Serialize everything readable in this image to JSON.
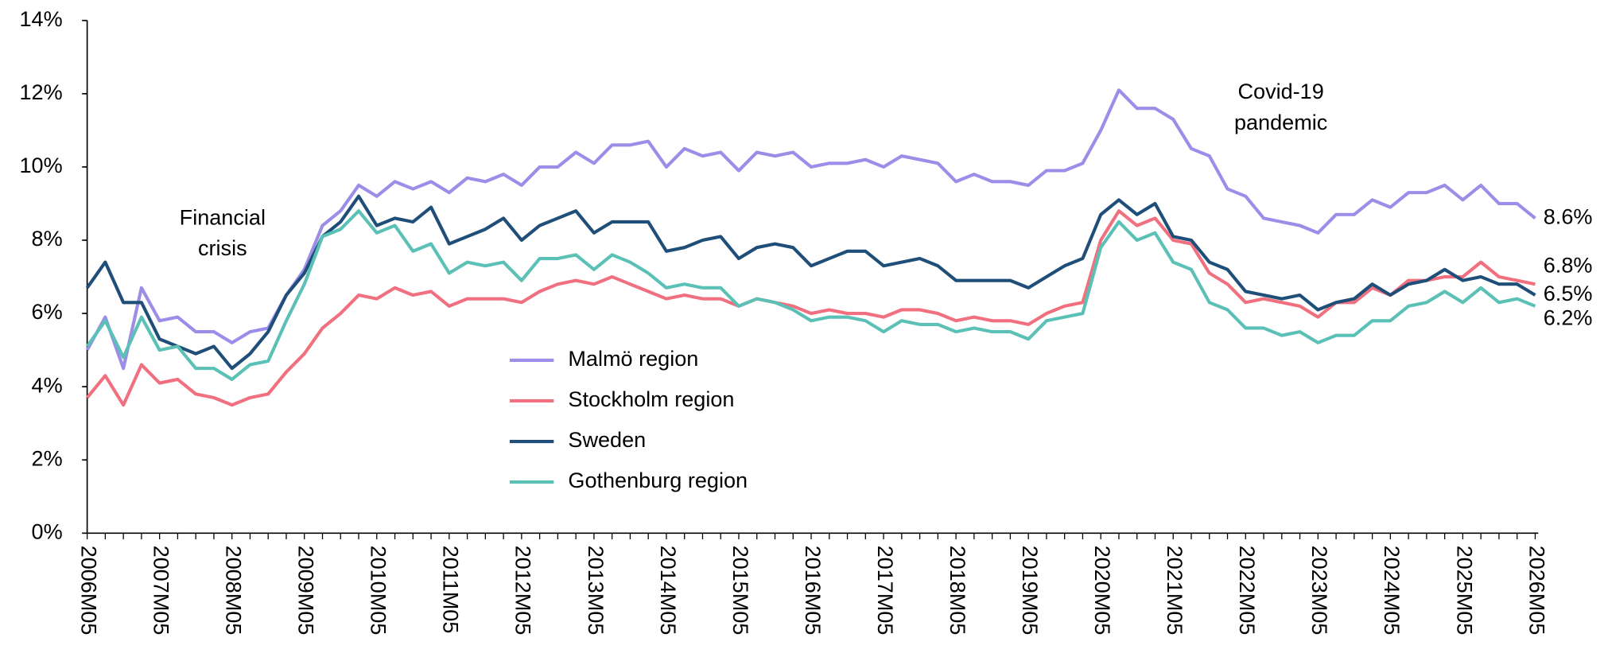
{
  "chart_data": {
    "type": "line",
    "categories": [
      "2006M05",
      null,
      null,
      null,
      "2007M05",
      null,
      null,
      null,
      "2008M05",
      null,
      null,
      null,
      "2009M05",
      null,
      null,
      null,
      "2010M05",
      null,
      null,
      null,
      "2011M05",
      null,
      null,
      null,
      "2012M05",
      null,
      null,
      null,
      "2013M05",
      null,
      null,
      null,
      "2014M05",
      null,
      null,
      null,
      "2015M05",
      null,
      null,
      null,
      "2016M05",
      null,
      null,
      null,
      "2017M05",
      null,
      null,
      null,
      "2018M05",
      null,
      null,
      null,
      "2019M05",
      null,
      null,
      null,
      "2020M05",
      null,
      null,
      null,
      "2021M05",
      null,
      null,
      null,
      "2022M05",
      null,
      null,
      null,
      "2023M05",
      null,
      null,
      null,
      "2024M05",
      null,
      null,
      null,
      "2025M05",
      null,
      null,
      null,
      "2026M05"
    ],
    "series": [
      {
        "name": "Malmö region",
        "color": "#9b8ee8",
        "end_label": "8.6%",
        "values": [
          5.0,
          5.9,
          4.5,
          6.7,
          5.8,
          5.9,
          5.5,
          5.5,
          5.2,
          5.5,
          5.6,
          6.5,
          7.2,
          8.4,
          8.8,
          9.5,
          9.2,
          9.6,
          9.4,
          9.6,
          9.3,
          9.7,
          9.6,
          9.8,
          9.5,
          10.0,
          10.0,
          10.4,
          10.1,
          10.6,
          10.6,
          10.7,
          10.0,
          10.5,
          10.3,
          10.4,
          9.9,
          10.4,
          10.3,
          10.4,
          10.0,
          10.1,
          10.1,
          10.2,
          10.0,
          10.3,
          10.2,
          10.1,
          9.6,
          9.8,
          9.6,
          9.6,
          9.5,
          9.9,
          9.9,
          10.1,
          11.0,
          12.1,
          11.6,
          11.6,
          11.3,
          10.5,
          10.3,
          9.4,
          9.2,
          8.6,
          8.5,
          8.4,
          8.2,
          8.7,
          8.7,
          9.1,
          8.9,
          9.3,
          9.3,
          9.5,
          9.1,
          9.5,
          9.0,
          9.0,
          8.6
        ]
      },
      {
        "name": "Stockholm region",
        "color": "#f07080",
        "end_label": "6.8%",
        "values": [
          3.7,
          4.3,
          3.5,
          4.6,
          4.1,
          4.2,
          3.8,
          3.7,
          3.5,
          3.7,
          3.8,
          4.4,
          4.9,
          5.6,
          6.0,
          6.5,
          6.4,
          6.7,
          6.5,
          6.6,
          6.2,
          6.4,
          6.4,
          6.4,
          6.3,
          6.6,
          6.8,
          6.9,
          6.8,
          7.0,
          6.8,
          6.6,
          6.4,
          6.5,
          6.4,
          6.4,
          6.2,
          6.4,
          6.3,
          6.2,
          6.0,
          6.1,
          6.0,
          6.0,
          5.9,
          6.1,
          6.1,
          6.0,
          5.8,
          5.9,
          5.8,
          5.8,
          5.7,
          6.0,
          6.2,
          6.3,
          8.0,
          8.8,
          8.4,
          8.6,
          8.0,
          7.9,
          7.1,
          6.8,
          6.3,
          6.4,
          6.3,
          6.2,
          5.9,
          6.3,
          6.3,
          6.7,
          6.5,
          6.9,
          6.9,
          7.0,
          7.0,
          7.4,
          7.0,
          6.9,
          6.8
        ]
      },
      {
        "name": "Sweden",
        "color": "#1f4e79",
        "end_label": "6.5%",
        "values": [
          6.7,
          7.4,
          6.3,
          6.3,
          5.3,
          5.1,
          4.9,
          5.1,
          4.5,
          4.9,
          5.5,
          6.5,
          7.1,
          8.1,
          8.5,
          9.2,
          8.4,
          8.6,
          8.5,
          8.9,
          7.9,
          8.1,
          8.3,
          8.6,
          8.0,
          8.4,
          8.6,
          8.8,
          8.2,
          8.5,
          8.5,
          8.5,
          7.7,
          7.8,
          8.0,
          8.1,
          7.5,
          7.8,
          7.9,
          7.8,
          7.3,
          7.5,
          7.7,
          7.7,
          7.3,
          7.4,
          7.5,
          7.3,
          6.9,
          6.9,
          6.9,
          6.9,
          6.7,
          7.0,
          7.3,
          7.5,
          8.7,
          9.1,
          8.7,
          9.0,
          8.1,
          8.0,
          7.4,
          7.2,
          6.6,
          6.5,
          6.4,
          6.5,
          6.1,
          6.3,
          6.4,
          6.8,
          6.5,
          6.8,
          6.9,
          7.2,
          6.9,
          7.0,
          6.8,
          6.8,
          6.5
        ]
      },
      {
        "name": "Gothenburg region",
        "color": "#5bc0b5",
        "end_label": "6.2%",
        "values": [
          5.1,
          5.8,
          4.8,
          5.9,
          5.0,
          5.1,
          4.5,
          4.5,
          4.2,
          4.6,
          4.7,
          5.8,
          6.8,
          8.1,
          8.3,
          8.8,
          8.2,
          8.4,
          7.7,
          7.9,
          7.1,
          7.4,
          7.3,
          7.4,
          6.9,
          7.5,
          7.5,
          7.6,
          7.2,
          7.6,
          7.4,
          7.1,
          6.7,
          6.8,
          6.7,
          6.7,
          6.2,
          6.4,
          6.3,
          6.1,
          5.8,
          5.9,
          5.9,
          5.8,
          5.5,
          5.8,
          5.7,
          5.7,
          5.5,
          5.6,
          5.5,
          5.5,
          5.3,
          5.8,
          5.9,
          6.0,
          7.8,
          8.5,
          8.0,
          8.2,
          7.4,
          7.2,
          6.3,
          6.1,
          5.6,
          5.6,
          5.4,
          5.5,
          5.2,
          5.4,
          5.4,
          5.8,
          5.8,
          6.2,
          6.3,
          6.6,
          6.3,
          6.7,
          6.3,
          6.4,
          6.2
        ]
      }
    ],
    "ylim": [
      0,
      14
    ],
    "yticks": [
      {
        "value": 0,
        "label": "0%"
      },
      {
        "value": 2,
        "label": "2%"
      },
      {
        "value": 4,
        "label": "4%"
      },
      {
        "value": 6,
        "label": "6%"
      },
      {
        "value": 8,
        "label": "8%"
      },
      {
        "value": 10,
        "label": "10%"
      },
      {
        "value": 12,
        "label": "12%"
      },
      {
        "value": 14,
        "label": "14%"
      }
    ],
    "grid": false,
    "annotations": [
      {
        "lines": [
          "Financial",
          "crisis"
        ]
      },
      {
        "lines": [
          "Covid-19",
          "pandemic"
        ]
      }
    ]
  }
}
